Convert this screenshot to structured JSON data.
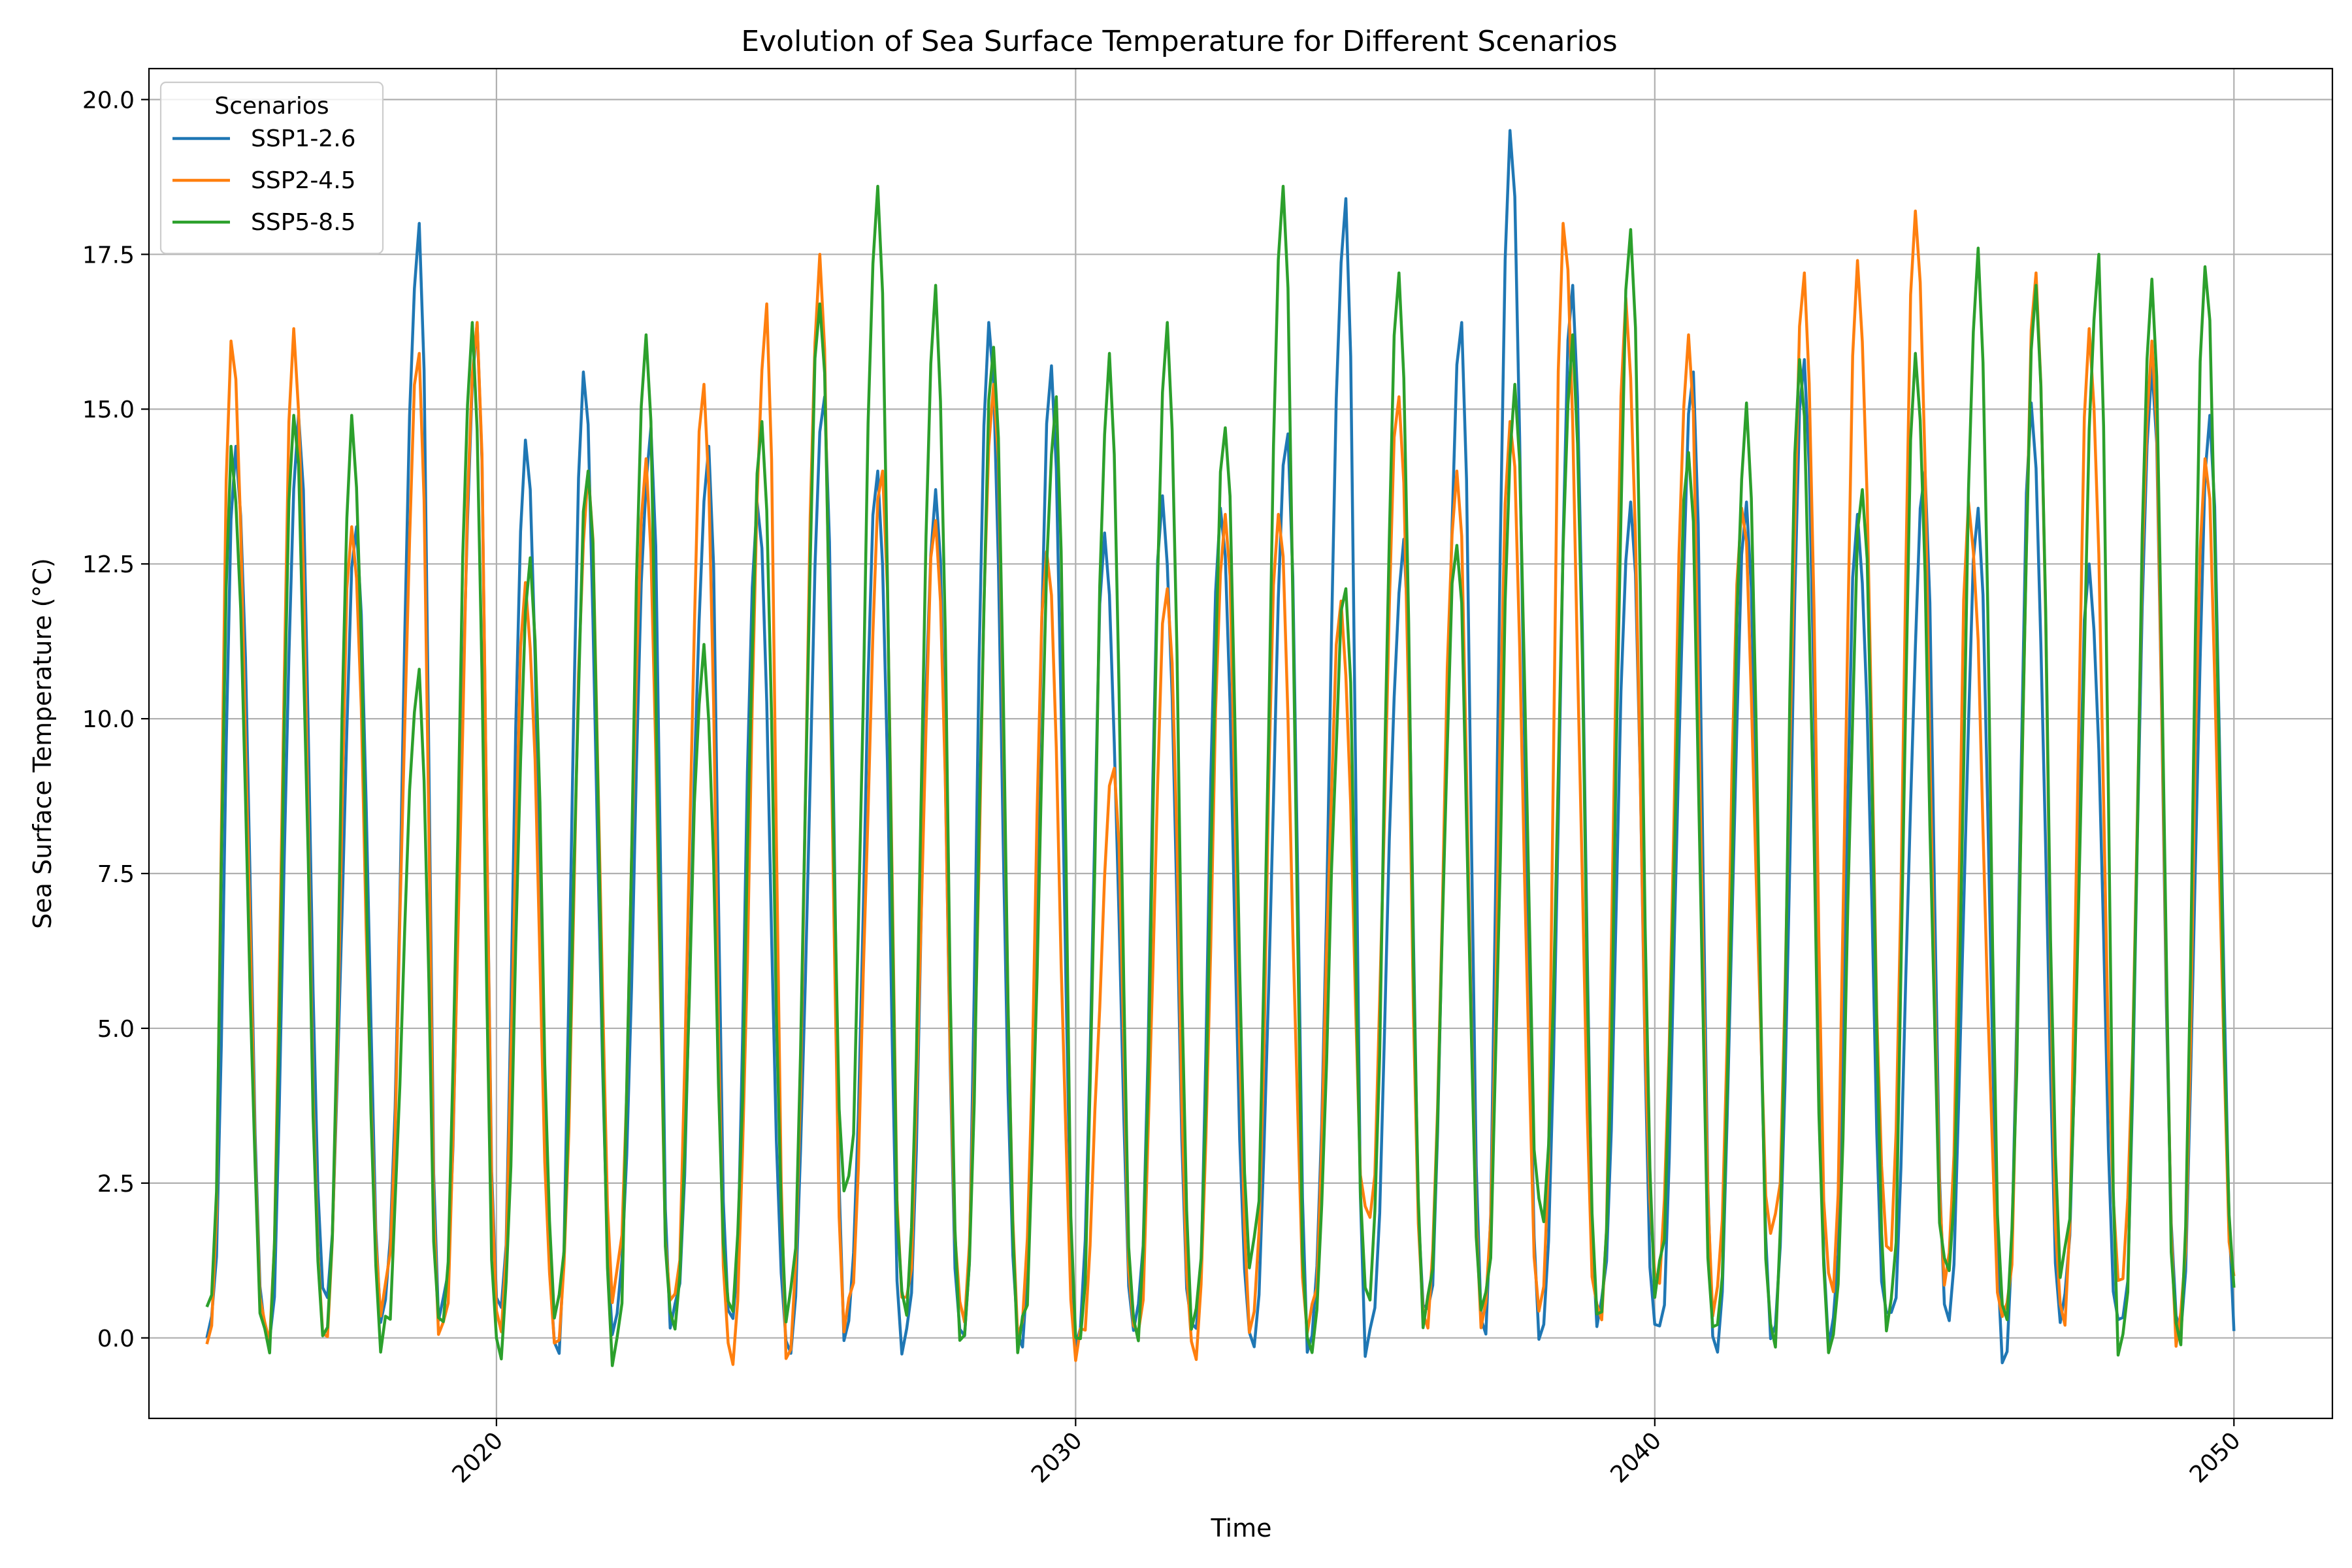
{
  "chart_data": {
    "type": "line",
    "title": "Evolution of Sea Surface Temperature for Different Scenarios",
    "xlabel": "Time",
    "ylabel": "Sea Surface Temperature (°C)",
    "xlim": [
      2014.0,
      2051.7
    ],
    "ylim": [
      -1.3,
      20.5
    ],
    "x_ticks": [
      2020,
      2030,
      2040,
      2050
    ],
    "x_tick_labels": [
      "2020",
      "2030",
      "2040",
      "2050"
    ],
    "y_ticks": [
      0.0,
      2.5,
      5.0,
      7.5,
      10.0,
      12.5,
      15.0,
      17.5,
      20.0
    ],
    "y_tick_labels": [
      "0.0",
      "2.5",
      "5.0",
      "7.5",
      "10.0",
      "12.5",
      "15.0",
      "17.5",
      "20.0"
    ],
    "grid": true,
    "legend": {
      "title": "Scenarios",
      "position": "upper-left"
    },
    "series": [
      {
        "name": "SSP1-2.6",
        "color": "#1f77b4",
        "peak_months": [
          7,
          8,
          8,
          9,
          9,
          7,
          7,
          9,
          9,
          7,
          9,
          8,
          8,
          7,
          8,
          7,
          7,
          7,
          9,
          9,
          9,
          9,
          7,
          8,
          8,
          9,
          8,
          8,
          7,
          9,
          8,
          7,
          7,
          8,
          8
        ],
        "troughs": [
          0.0,
          -0.1,
          0.8,
          0.5,
          0.3,
          0.4,
          -0.1,
          0.3,
          0.2,
          0.2,
          -0.1,
          0.2,
          -0.2,
          -0.1,
          0.0,
          0.1,
          0.2,
          0.0,
          0.0,
          0.0,
          -0.2,
          0.3,
          0.2,
          0.2,
          0.3,
          0.0,
          -0.1,
          0.2,
          0.0,
          0.2,
          0.4,
          -0.2,
          0.4,
          0.1,
          0.2,
          0.3
        ],
        "peaks": [
          14.4,
          14.9,
          13.1,
          18.0,
          16.4,
          14.5,
          15.6,
          14.7,
          14.4,
          13.5,
          15.2,
          14.0,
          13.7,
          16.4,
          15.7,
          13.0,
          13.6,
          13.4,
          14.6,
          18.4,
          12.9,
          16.4,
          19.5,
          17.0,
          13.5,
          15.6,
          13.5,
          15.8,
          13.3,
          14.0,
          13.4,
          15.1,
          12.5,
          15.7,
          14.9
        ]
      },
      {
        "name": "SSP2-4.5",
        "color": "#ff7f0e",
        "peak_months": [
          6,
          7,
          7,
          9,
          9,
          7,
          8,
          8,
          8,
          9,
          8,
          9,
          8,
          8,
          7,
          9,
          8,
          8,
          7,
          8,
          8,
          8,
          7,
          6,
          7,
          8,
          7,
          8,
          7,
          7,
          6,
          8,
          7,
          8,
          7
        ],
        "troughs": [
          -0.1,
          0.0,
          0.1,
          0.6,
          0.0,
          0.2,
          0.0,
          0.8,
          0.5,
          -0.3,
          -0.2,
          0.3,
          0.5,
          0.4,
          0.2,
          -0.2,
          0.0,
          -0.2,
          0.3,
          0.2,
          1.9,
          0.3,
          0.4,
          0.5,
          0.3,
          1.0,
          0.6,
          1.7,
          0.8,
          1.5,
          1.1,
          0.3,
          0.3,
          1.0,
          0.1,
          0.9
        ],
        "peaks": [
          16.1,
          16.3,
          13.1,
          15.9,
          16.4,
          12.2,
          14.0,
          14.2,
          15.4,
          16.7,
          17.5,
          14.0,
          13.2,
          15.4,
          12.7,
          9.2,
          12.1,
          13.3,
          13.3,
          11.9,
          15.2,
          14.0,
          14.8,
          18.0,
          16.8,
          16.2,
          13.4,
          17.2,
          17.4,
          18.2,
          13.5,
          17.2,
          16.3,
          16.1,
          14.2
        ]
      },
      {
        "name": "SSP5-8.5",
        "color": "#2ca02c",
        "peak_months": [
          6,
          7,
          7,
          9,
          8,
          8,
          8,
          8,
          8,
          8,
          8,
          8,
          8,
          8,
          9,
          8,
          8,
          8,
          8,
          9,
          8,
          8,
          8,
          8,
          8,
          8,
          8,
          7,
          8,
          7,
          8,
          8,
          9,
          8,
          7
        ],
        "troughs": [
          0.5,
          -0.1,
          0.1,
          0.0,
          0.2,
          -0.2,
          0.5,
          -0.3,
          0.2,
          0.5,
          0.5,
          2.4,
          0.5,
          0.0,
          0.0,
          -0.1,
          0.1,
          0.3,
          1.3,
          -0.2,
          0.7,
          0.4,
          0.5,
          2.0,
          0.4,
          0.9,
          0.1,
          0.0,
          -0.1,
          0.3,
          1.1,
          0.4,
          1.2,
          -0.2,
          0.0,
          0.8
        ],
        "peaks": [
          14.4,
          14.9,
          14.9,
          10.8,
          16.4,
          12.6,
          14.0,
          16.2,
          11.2,
          14.8,
          16.7,
          18.6,
          17.0,
          16.0,
          15.2,
          15.9,
          16.4,
          14.7,
          18.6,
          12.1,
          17.2,
          12.8,
          15.4,
          16.2,
          17.9,
          14.3,
          15.1,
          15.8,
          13.7,
          15.9,
          17.6,
          17.0,
          17.5,
          17.1,
          17.3
        ]
      }
    ]
  }
}
